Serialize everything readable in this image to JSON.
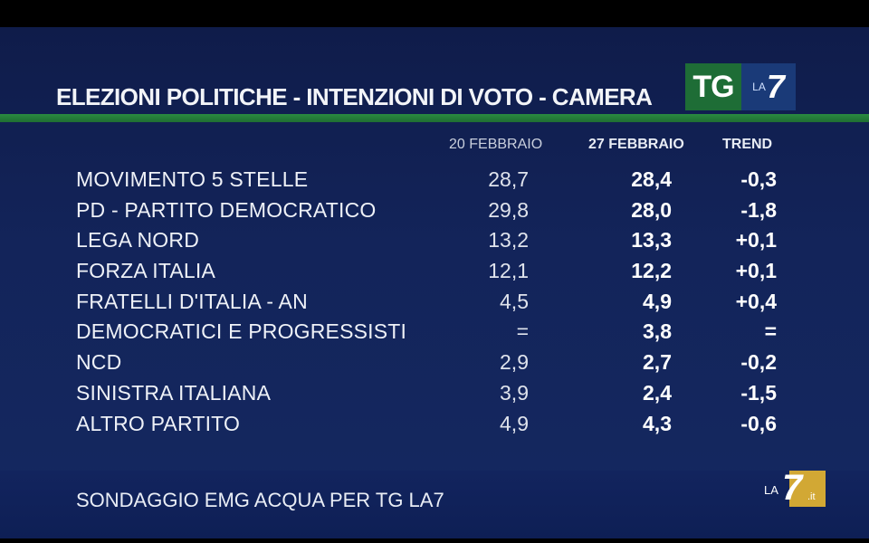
{
  "title": "ELEZIONI POLITICHE - INTENZIONI DI VOTO - CAMERA",
  "logo": {
    "tg": "TG",
    "la": "LA",
    "seven": "7"
  },
  "columns": {
    "feb20": "20 FEBBRAIO",
    "feb27": "27 FEBBRAIO",
    "trend": "TREND"
  },
  "rows": [
    {
      "party": "MOVIMENTO 5 STELLE",
      "feb20": "28,7",
      "feb27": "28,4",
      "trend": "-0,3"
    },
    {
      "party": "PD - PARTITO DEMOCRATICO",
      "feb20": "29,8",
      "feb27": "28,0",
      "trend": "-1,8"
    },
    {
      "party": "LEGA NORD",
      "feb20": "13,2",
      "feb27": "13,3",
      "trend": "+0,1"
    },
    {
      "party": "FORZA ITALIA",
      "feb20": "12,1",
      "feb27": "12,2",
      "trend": "+0,1"
    },
    {
      "party": "FRATELLI D'ITALIA - AN",
      "feb20": "4,5",
      "feb27": "4,9",
      "trend": "+0,4"
    },
    {
      "party": "DEMOCRATICI E PROGRESSISTI",
      "feb20": "=",
      "feb27": "3,8",
      "trend": "="
    },
    {
      "party": "NCD",
      "feb20": "2,9",
      "feb27": "2,7",
      "trend": "-0,2"
    },
    {
      "party": "SINISTRA ITALIANA",
      "feb20": "3,9",
      "feb27": "2,4",
      "trend": "-1,5"
    },
    {
      "party": "ALTRO PARTITO",
      "feb20": "4,9",
      "feb27": "4,3",
      "trend": "-0,6"
    }
  ],
  "source": "SONDAGGIO EMG ACQUA PER TG LA7",
  "watermark": {
    "la": "LA",
    "seven": "7",
    "it": ".it"
  },
  "colors": {
    "background": "#13245a",
    "accent_green": "#1f6e32",
    "logo_blue": "#1a3a78",
    "watermark_gold": "#e8b730"
  }
}
